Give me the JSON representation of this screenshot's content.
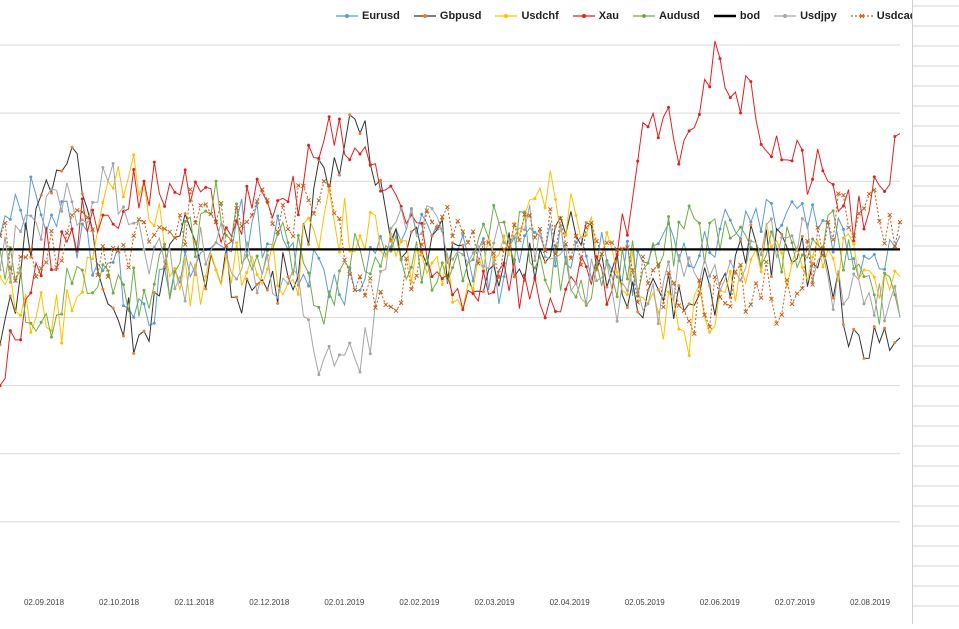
{
  "chart_data": {
    "type": "line",
    "title": "",
    "xlabel": "",
    "ylabel": "",
    "y_tick_labels_visible": false,
    "grid": "horizontal",
    "legend_position": "top",
    "x_tick_labels": [
      "02.09.2018",
      "02.10.2018",
      "02.11.2018",
      "02.12.2018",
      "02.01.2019",
      "02.02.2019",
      "02.03.2019",
      "02.04.2019",
      "02.05.2019",
      "02.06.2019",
      "02.07.2019",
      "02.08.2019"
    ],
    "x_range": [
      "2018-08-22",
      "2019-08-15"
    ],
    "y_range": [
      -5,
      3
    ],
    "baseline_value": 0,
    "series": [
      {
        "name": "Eurusd",
        "color": "#5b9bd5",
        "marker": "dot",
        "style": "solid",
        "points": [
          [
            0,
            0.2
          ],
          [
            14,
            0.8
          ],
          [
            28,
            0.3
          ],
          [
            42,
            -0.2
          ],
          [
            56,
            -0.8
          ],
          [
            70,
            -0.5
          ],
          [
            84,
            0.1
          ],
          [
            98,
            0.4
          ],
          [
            112,
            0.0
          ],
          [
            126,
            -0.3
          ],
          [
            140,
            -0.6
          ],
          [
            154,
            0.3
          ],
          [
            168,
            0.2
          ],
          [
            182,
            -0.1
          ],
          [
            196,
            -0.4
          ],
          [
            210,
            0.2
          ],
          [
            224,
            0.1
          ],
          [
            238,
            -0.3
          ],
          [
            252,
            -0.2
          ],
          [
            266,
            0.1
          ],
          [
            280,
            0.3
          ],
          [
            294,
            0.6
          ],
          [
            308,
            0.7
          ],
          [
            322,
            0.4
          ],
          [
            336,
            -0.1
          ],
          [
            350,
            0.2
          ]
        ]
      },
      {
        "name": "Gbpusd",
        "color": "#333333",
        "marker": "dot-orange",
        "style": "solid",
        "points": [
          [
            0,
            -1.4
          ],
          [
            14,
            0.6
          ],
          [
            28,
            1.5
          ],
          [
            42,
            -0.8
          ],
          [
            56,
            -1.2
          ],
          [
            70,
            0.2
          ],
          [
            84,
            -0.3
          ],
          [
            98,
            -0.6
          ],
          [
            112,
            -0.4
          ],
          [
            126,
            1.2
          ],
          [
            140,
            1.7
          ],
          [
            154,
            0.3
          ],
          [
            168,
            0.2
          ],
          [
            182,
            -0.4
          ],
          [
            196,
            -0.2
          ],
          [
            210,
            0.0
          ],
          [
            224,
            0.2
          ],
          [
            238,
            -0.3
          ],
          [
            252,
            -0.6
          ],
          [
            266,
            -0.9
          ],
          [
            280,
            -0.5
          ],
          [
            294,
            0.1
          ],
          [
            308,
            -0.2
          ],
          [
            322,
            -0.3
          ],
          [
            336,
            -1.6
          ],
          [
            350,
            -1.3
          ]
        ]
      },
      {
        "name": "Usdchf",
        "color": "#ffc000",
        "marker": "dot",
        "style": "solid",
        "points": [
          [
            0,
            -0.4
          ],
          [
            14,
            -1.0
          ],
          [
            28,
            -0.9
          ],
          [
            42,
            1.0
          ],
          [
            56,
            1.0
          ],
          [
            70,
            -0.6
          ],
          [
            84,
            -0.3
          ],
          [
            98,
            -0.1
          ],
          [
            112,
            -0.5
          ],
          [
            126,
            0.5
          ],
          [
            140,
            0.2
          ],
          [
            154,
            -0.1
          ],
          [
            168,
            -0.2
          ],
          [
            182,
            -0.5
          ],
          [
            196,
            0.2
          ],
          [
            210,
            0.9
          ],
          [
            224,
            0.5
          ],
          [
            238,
            0.0
          ],
          [
            252,
            -0.8
          ],
          [
            266,
            -1.2
          ],
          [
            280,
            -0.6
          ],
          [
            294,
            0.0
          ],
          [
            308,
            -0.2
          ],
          [
            322,
            0.0
          ],
          [
            336,
            -0.3
          ],
          [
            350,
            -0.4
          ]
        ]
      },
      {
        "name": "Xau",
        "color": "#e02020",
        "marker": "dot",
        "style": "solid",
        "points": [
          [
            0,
            -2.0
          ],
          [
            14,
            -0.2
          ],
          [
            28,
            0.3
          ],
          [
            42,
            0.5
          ],
          [
            56,
            1.0
          ],
          [
            70,
            0.8
          ],
          [
            84,
            0.4
          ],
          [
            98,
            0.6
          ],
          [
            112,
            0.7
          ],
          [
            126,
            1.6
          ],
          [
            140,
            1.4
          ],
          [
            154,
            0.8
          ],
          [
            168,
            -0.4
          ],
          [
            182,
            -0.6
          ],
          [
            196,
            -0.2
          ],
          [
            210,
            -0.8
          ],
          [
            224,
            -0.5
          ],
          [
            238,
            -0.6
          ],
          [
            252,
            1.8
          ],
          [
            266,
            1.6
          ],
          [
            280,
            2.8
          ],
          [
            294,
            1.9
          ],
          [
            308,
            1.3
          ],
          [
            322,
            1.0
          ],
          [
            336,
            0.3
          ],
          [
            350,
            1.7
          ]
        ]
      },
      {
        "name": "Audusd",
        "color": "#70ad47",
        "marker": "dot",
        "style": "solid",
        "points": [
          [
            0,
            0.0
          ],
          [
            14,
            -1.2
          ],
          [
            28,
            -0.5
          ],
          [
            42,
            -0.3
          ],
          [
            56,
            -0.6
          ],
          [
            70,
            -0.2
          ],
          [
            84,
            1.0
          ],
          [
            98,
            -0.3
          ],
          [
            112,
            0.1
          ],
          [
            126,
            -1.1
          ],
          [
            140,
            0.0
          ],
          [
            154,
            0.2
          ],
          [
            168,
            -0.6
          ],
          [
            182,
            -0.2
          ],
          [
            196,
            0.4
          ],
          [
            210,
            -0.1
          ],
          [
            224,
            -0.7
          ],
          [
            238,
            -0.4
          ],
          [
            252,
            -0.2
          ],
          [
            266,
            0.3
          ],
          [
            280,
            0.0
          ],
          [
            294,
            0.0
          ],
          [
            308,
            0.1
          ],
          [
            322,
            0.5
          ],
          [
            336,
            -0.4
          ],
          [
            350,
            -1.0
          ]
        ]
      },
      {
        "name": "bod",
        "color": "#000000",
        "marker": "none",
        "style": "thick",
        "points": [
          [
            0,
            0
          ],
          [
            350,
            0
          ]
        ]
      },
      {
        "name": "Usdjpy",
        "color": "#a5a5a5",
        "marker": "dot",
        "style": "solid",
        "points": [
          [
            0,
            -0.3
          ],
          [
            14,
            0.4
          ],
          [
            28,
            0.7
          ],
          [
            42,
            1.0
          ],
          [
            56,
            0.0
          ],
          [
            70,
            -0.4
          ],
          [
            84,
            0.1
          ],
          [
            98,
            -0.2
          ],
          [
            112,
            -0.5
          ],
          [
            126,
            -1.6
          ],
          [
            140,
            -1.8
          ],
          [
            154,
            0.4
          ],
          [
            168,
            0.6
          ],
          [
            182,
            -0.2
          ],
          [
            196,
            0.1
          ],
          [
            210,
            0.3
          ],
          [
            224,
            -0.5
          ],
          [
            238,
            -0.6
          ],
          [
            252,
            -0.8
          ],
          [
            266,
            -0.4
          ],
          [
            280,
            -0.6
          ],
          [
            294,
            0.1
          ],
          [
            308,
            0.2
          ],
          [
            322,
            -0.4
          ],
          [
            336,
            -0.8
          ],
          [
            350,
            -1.0
          ]
        ]
      },
      {
        "name": "Usdcad",
        "color": "#c55a11",
        "marker": "cross",
        "style": "dashed",
        "points": [
          [
            0,
            0.2
          ],
          [
            14,
            -0.4
          ],
          [
            28,
            0.5
          ],
          [
            42,
            -0.4
          ],
          [
            56,
            0.4
          ],
          [
            70,
            0.5
          ],
          [
            84,
            0.4
          ],
          [
            98,
            0.5
          ],
          [
            112,
            0.3
          ],
          [
            126,
            1.0
          ],
          [
            140,
            -0.4
          ],
          [
            154,
            -0.9
          ],
          [
            168,
            0.4
          ],
          [
            182,
            0.1
          ],
          [
            196,
            0.0
          ],
          [
            210,
            0.3
          ],
          [
            224,
            0.2
          ],
          [
            238,
            0.1
          ],
          [
            252,
            -0.5
          ],
          [
            266,
            -0.9
          ],
          [
            280,
            -0.7
          ],
          [
            294,
            -0.5
          ],
          [
            308,
            -0.8
          ],
          [
            322,
            0.4
          ],
          [
            336,
            0.6
          ],
          [
            350,
            0.4
          ]
        ]
      }
    ]
  }
}
